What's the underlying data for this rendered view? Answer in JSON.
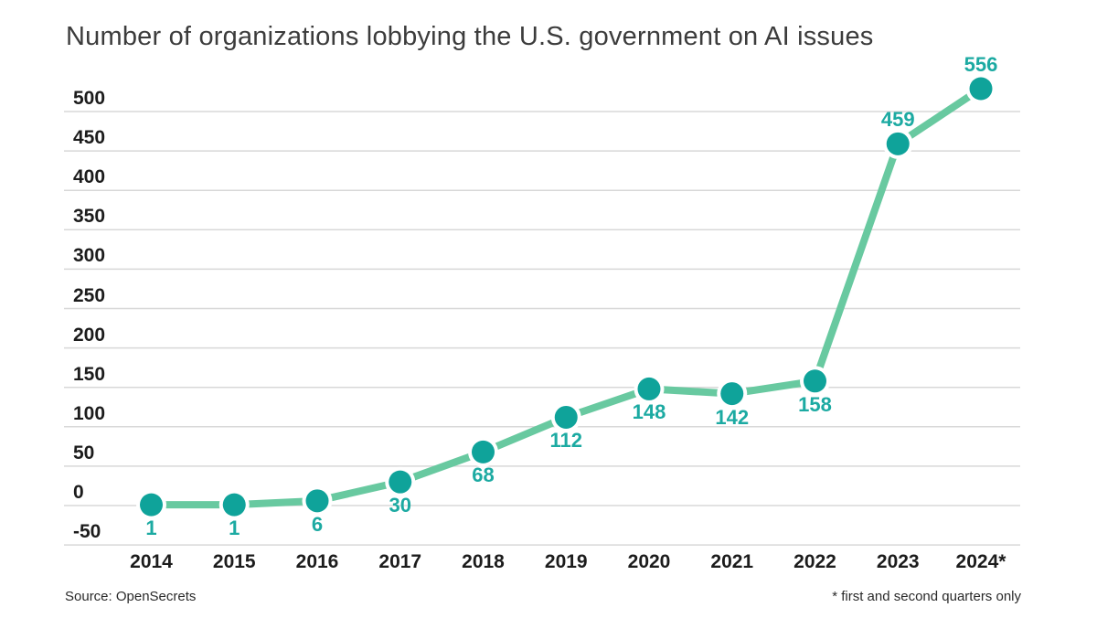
{
  "title": "Number of organizations lobbying the U.S. government on AI issues",
  "footer": {
    "source": "Source: OpenSecrets",
    "note": "* first and second quarters only"
  },
  "colors": {
    "background": "#ffffff",
    "line": "#68c9a0",
    "dot": "#0fa39a",
    "point_label": "#1caaa2",
    "grid": "#d8d8d8",
    "axis_text": "#1c1c1c",
    "title_text": "#3c3c3c",
    "footer_text": "#2a2a2a"
  },
  "chart_data": {
    "type": "line",
    "title": "Number of organizations lobbying the U.S. government on AI issues",
    "categories": [
      "2014",
      "2015",
      "2016",
      "2017",
      "2018",
      "2019",
      "2020",
      "2021",
      "2022",
      "2023",
      "2024*"
    ],
    "values": [
      1,
      1,
      6,
      30,
      68,
      112,
      148,
      142,
      158,
      459,
      556
    ],
    "xlabel": "",
    "ylabel": "",
    "ylim": [
      -50,
      500
    ],
    "ytick_step": 50,
    "yticks": [
      "-50",
      "0",
      "50",
      "100",
      "150",
      "200",
      "250",
      "300",
      "350",
      "400",
      "450",
      "500"
    ],
    "grid": "horizontal",
    "legend": "none",
    "point_labels": true,
    "point_label_position": {
      "below_point": [
        "2014",
        "2015",
        "2016",
        "2017",
        "2018",
        "2019",
        "2020",
        "2021",
        "2022"
      ],
      "above_point": [
        "2023",
        "2024*"
      ]
    }
  }
}
